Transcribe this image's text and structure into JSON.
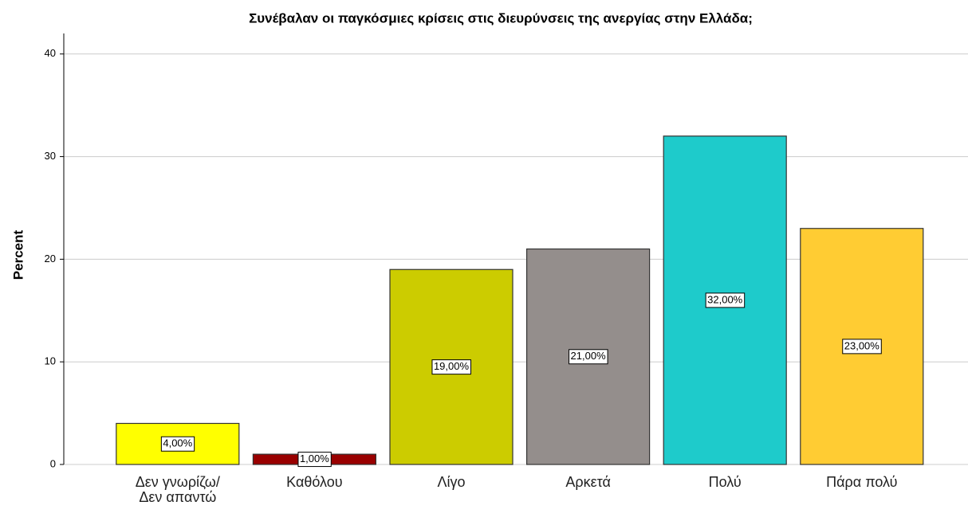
{
  "chart_data": {
    "type": "bar",
    "title": "Συνέβαλαν οι παγκόσμιες κρίσεις στις διευρύνσεις της ανεργίας στην Ελλάδα;",
    "ylabel": "Percent",
    "categories": [
      "Δεν γνωρίζω/Δεν απαντώ",
      "Καθόλου",
      "Λίγο",
      "Αρκετά",
      "Πολύ",
      "Πάρα πολύ"
    ],
    "values": [
      4,
      1,
      19,
      21,
      32,
      23
    ],
    "value_labels": [
      "4,00%",
      "1,00%",
      "19,00%",
      "21,00%",
      "32,00%",
      "23,00%"
    ],
    "colors": [
      "#ffff00",
      "#990000",
      "#cccc00",
      "#948e8c",
      "#1ecbcb",
      "#ffcc33"
    ],
    "ylim": [
      0,
      42
    ],
    "yticks": [
      0,
      10,
      20,
      30,
      40
    ],
    "grid": true
  }
}
